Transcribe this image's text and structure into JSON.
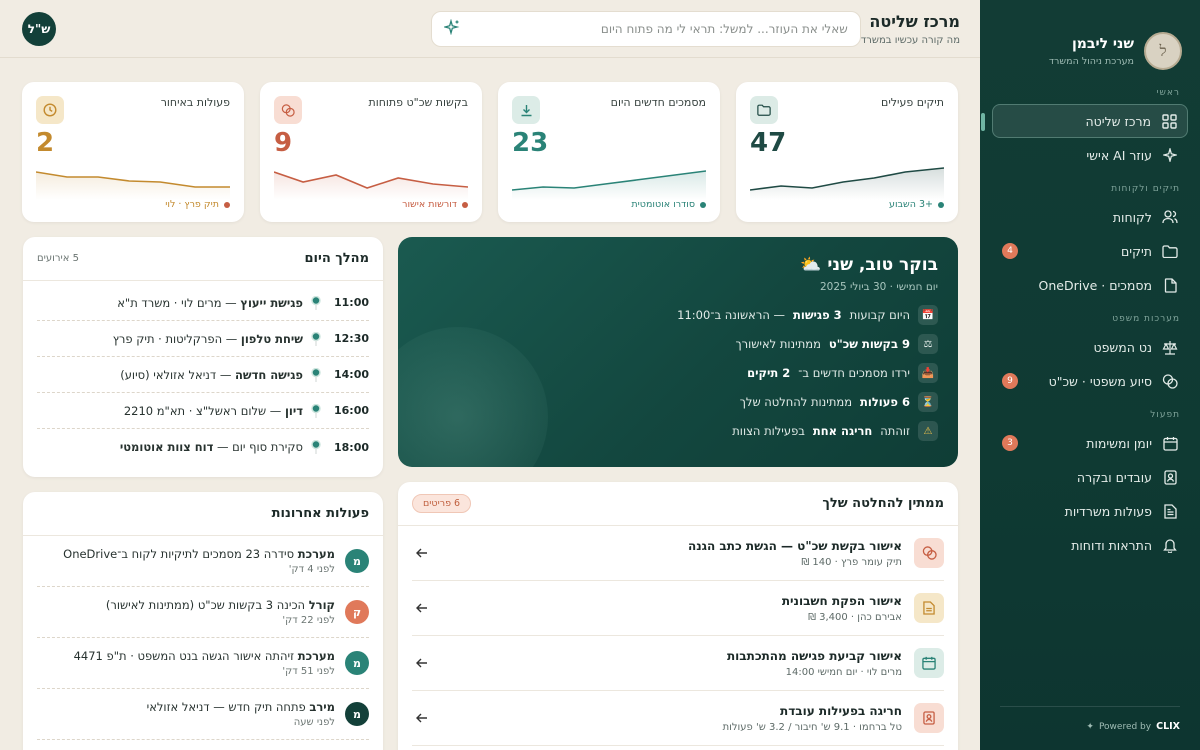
{
  "sidebar": {
    "brand_name": "שני ליבמן",
    "brand_sub": "מערכת ניהול המשרד",
    "sections": {
      "main": "ראשי",
      "cases": "תיקים ולקוחות",
      "legal": "מערכות משפט",
      "ops": "תפעול"
    },
    "items": {
      "control": "מרכז שליטה",
      "ai": "עוזר AI אישי",
      "clients": "לקוחות",
      "cases": "תיקים",
      "cases_badge": "4",
      "documents": "מסמכים · OneDrive",
      "netlaw": "נט המשפט",
      "legalaid": "סיוע משפטי · שכ\"ט",
      "legalaid_badge": "9",
      "calendar": "יומן ומשימות",
      "workers": "עובדים ובקרה",
      "officeops": "פעולות משרדיות",
      "alerts": "התראות ודוחות",
      "alerts_badge": "3"
    },
    "powered_by": "Powered by",
    "powered_brand": "CLIX"
  },
  "header": {
    "title": "מרכז שליטה",
    "subtitle": "מה קורה עכשיו במשרד",
    "search_placeholder": "שאלי את העוזר... למשל: תראי לי מה פתוח היום",
    "user_initials": "ש\"ל"
  },
  "stats": [
    {
      "label": "תיקים פעילים",
      "value": "47",
      "foot": "+3 השבוע",
      "color": "#1f4a44",
      "icon_bg": "#dcebe6"
    },
    {
      "label": "מסמכים חדשים היום",
      "value": "23",
      "foot": "סודרו אוטומטית",
      "color": "#2a8377",
      "icon_bg": "#dcece7"
    },
    {
      "label": "בקשות שכ\"ט פתוחות",
      "value": "9",
      "foot": "דורשות אישור",
      "color": "#c65e43",
      "icon_bg": "#f8ddd3"
    },
    {
      "label": "פעולות באיחור",
      "value": "2",
      "foot": "תיק פרץ · לוי",
      "color": "#c38a2e",
      "icon_bg": "#f5e7c8"
    }
  ],
  "schedule": {
    "title": "מהלך היום",
    "meta": "5 אירועים",
    "rows": [
      {
        "time": "11:00",
        "bold": "פגישת ייעוץ",
        "rest": " — מרים לוי · משרד ת\"א"
      },
      {
        "time": "12:30",
        "bold": "שיחת טלפון",
        "rest": " — הפרקליטות · תיק פרץ"
      },
      {
        "time": "14:00",
        "bold": "פגישה חדשה",
        "rest": " — דניאל אזולאי (סיוע)"
      },
      {
        "time": "16:00",
        "bold": "דיון",
        "rest": " — שלום ראשל\"צ · תא\"מ 2210"
      },
      {
        "time": "18:00",
        "bold": "",
        "rest": "סקירת סוף יום — ",
        "bold2": "דוח צוות אוטומטי"
      }
    ]
  },
  "greeting": {
    "title": "בוקר טוב, שני",
    "date": "יום חמישי · 30 ביולי 2025",
    "lines": [
      {
        "icon": "📅",
        "pre": "היום קבועות ",
        "bold": "3 פגישות",
        "post": " — הראשונה ב־11:00"
      },
      {
        "icon": "⚖",
        "pre": "",
        "bold": "9 בקשות שכ\"ט",
        "post": " ממתינות לאישורך"
      },
      {
        "icon": "📥",
        "pre": "ירדו מסמכים חדשים ב־ ",
        "bold": "2 תיקים",
        "post": ""
      },
      {
        "icon": "⏳",
        "pre": "",
        "bold": "6 פעולות",
        "post": " ממתינות להחלטה שלך"
      },
      {
        "icon": "⚠",
        "pre": "זוהתה ",
        "bold": "חריגה אחת",
        "post": " בפעילות הצוות"
      }
    ]
  },
  "recent": {
    "title": "פעולות אחרונות",
    "rows": [
      {
        "initial": "מ",
        "color": "#2a8377",
        "bold": "מערכת",
        "rest": " סידרה 23 מסמכים לתיקיות לקוח ב־OneDrive",
        "time": "לפני 4 דק'"
      },
      {
        "initial": "ק",
        "color": "#e0795a",
        "bold": "קורל",
        "rest": " הכינה 3 בקשות שכ\"ט (ממתינות לאישור)",
        "time": "לפני 22 דק'"
      },
      {
        "initial": "מ",
        "color": "#2a8377",
        "bold": "מערכת",
        "rest": " זיהתה אישור הגשה בנט המשפט · ת\"פ 4471",
        "time": "לפני 51 דק'"
      },
      {
        "initial": "מ",
        "color": "#134039",
        "bold": "מירב",
        "rest": " פתחה תיק חדש — דניאל אזולאי",
        "time": "לפני שעה"
      }
    ]
  },
  "pending": {
    "title": "ממתין להחלטה שלך",
    "badge": "6 פריטים",
    "rows": [
      {
        "title": "אישור בקשת שכ\"ט — הגשת כתב הגנה",
        "sub": "תיק עומר פרץ · 140 ₪",
        "icon_bg": "#f8ddd3",
        "icon_color": "#c65e43"
      },
      {
        "title": "אישור הפקת חשבונית",
        "sub": "אבירם כהן · 3,400 ₪",
        "icon_bg": "#f5e7c8",
        "icon_color": "#c38a2e"
      },
      {
        "title": "אישור קביעת פגישה מהתכתבות",
        "sub": "מרים לוי · יום חמישי 14:00",
        "icon_bg": "#dcece7",
        "icon_color": "#2a8377"
      },
      {
        "title": "חריגה בפעילות עובדת",
        "sub": "טל ברחמו · 9.1 ש' חיבור / 3.2 ש' פעולות",
        "icon_bg": "#f8ddd3",
        "icon_color": "#c65e43"
      }
    ]
  }
}
